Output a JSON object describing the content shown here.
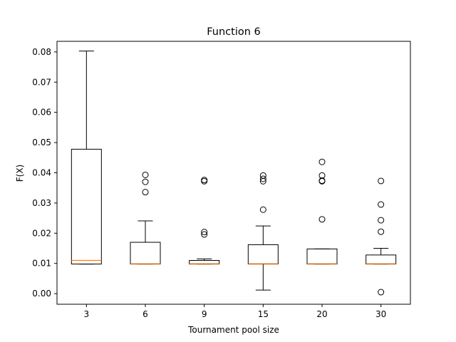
{
  "chart_data": {
    "type": "box",
    "title": "Function 6",
    "xlabel": "Tournament pool size",
    "ylabel": "F(X)",
    "ylim": [
      -0.0035,
      0.0835
    ],
    "yticks": [
      0.0,
      0.01,
      0.02,
      0.03,
      0.04,
      0.05,
      0.06,
      0.07,
      0.08
    ],
    "ytick_labels": [
      "0.00",
      "0.01",
      "0.02",
      "0.03",
      "0.04",
      "0.05",
      "0.06",
      "0.07",
      "0.08"
    ],
    "categories": [
      "3",
      "6",
      "9",
      "15",
      "20",
      "30"
    ],
    "grid": false,
    "colors": {
      "box": "#000000",
      "median": "#ff7f0e",
      "background": "#ffffff"
    },
    "boxes": [
      {
        "category": "3",
        "whisker_low": 0.0098,
        "q1": 0.0098,
        "median": 0.011,
        "q3": 0.0478,
        "whisker_high": 0.0803,
        "outliers": []
      },
      {
        "category": "6",
        "whisker_low": 0.0098,
        "q1": 0.0098,
        "median": 0.0099,
        "q3": 0.017,
        "whisker_high": 0.0241,
        "outliers": [
          0.0336,
          0.037,
          0.0393
        ]
      },
      {
        "category": "9",
        "whisker_low": 0.0098,
        "q1": 0.0098,
        "median": 0.0099,
        "q3": 0.011,
        "whisker_high": 0.0115,
        "outliers": [
          0.0196,
          0.0204,
          0.0372,
          0.0376
        ]
      },
      {
        "category": "15",
        "whisker_low": 0.0012,
        "q1": 0.0098,
        "median": 0.0099,
        "q3": 0.0162,
        "whisker_high": 0.0224,
        "outliers": [
          0.0278,
          0.0372,
          0.038,
          0.0391
        ]
      },
      {
        "category": "20",
        "whisker_low": 0.0098,
        "q1": 0.0098,
        "median": 0.0099,
        "q3": 0.0148,
        "whisker_high": 0.0148,
        "outliers": [
          0.0246,
          0.0372,
          0.0374,
          0.0391,
          0.0436
        ]
      },
      {
        "category": "30",
        "whisker_low": 0.0098,
        "q1": 0.0098,
        "median": 0.0099,
        "q3": 0.0128,
        "whisker_high": 0.015,
        "outliers": [
          0.0005,
          0.0205,
          0.0243,
          0.0295,
          0.0373
        ]
      }
    ]
  }
}
